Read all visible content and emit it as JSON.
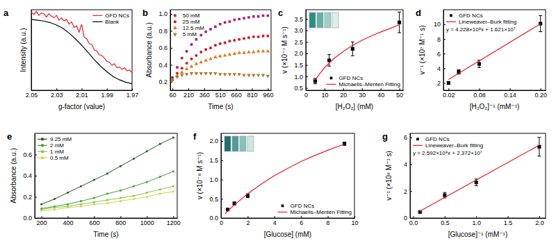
{
  "chart_data": [
    {
      "panel": "a",
      "type": "line",
      "x_label": "g-factor (value)",
      "y_label": "Intensity (a.u.)",
      "xlim": [
        2.05,
        1.97
      ],
      "xticks": [
        2.05,
        2.03,
        2.01,
        1.99,
        1.97
      ],
      "ylim": [
        0,
        1
      ],
      "tick_labels": "x",
      "legend": "top-right",
      "series": [
        {
          "name": "GFD NCs",
          "color": "#ee1c25",
          "x": [
            2.05,
            2.048,
            2.046,
            2.044,
            2.042,
            2.04,
            2.038,
            2.036,
            2.034,
            2.032,
            2.03,
            2.028,
            2.026,
            2.024,
            2.022,
            2.02,
            2.018,
            2.016,
            2.014,
            2.012,
            2.01,
            2.008,
            2.006,
            2.004,
            2.002,
            2.0,
            1.998,
            1.996,
            1.994,
            1.992,
            1.99,
            1.988,
            1.986,
            1.984,
            1.982,
            1.98,
            1.978,
            1.976,
            1.974,
            1.972,
            1.97
          ],
          "values": [
            0.97,
            0.94,
            0.98,
            0.93,
            0.96,
            0.95,
            0.91,
            0.95,
            0.92,
            0.9,
            0.93,
            0.87,
            0.9,
            0.86,
            0.88,
            0.82,
            0.85,
            0.78,
            0.8,
            0.72,
            0.82,
            0.66,
            0.64,
            0.58,
            0.57,
            0.5,
            0.49,
            0.44,
            0.43,
            0.4,
            0.36,
            0.35,
            0.31,
            0.33,
            0.28,
            0.29,
            0.26,
            0.28,
            0.24,
            0.25,
            0.22
          ]
        },
        {
          "name": "Blank",
          "color": "#000000",
          "x": [
            2.05,
            2.045,
            2.04,
            2.035,
            2.03,
            2.025,
            2.02,
            2.015,
            2.01,
            2.005,
            2.0,
            1.995,
            1.99,
            1.985,
            1.98,
            1.975,
            1.97
          ],
          "values": [
            0.88,
            0.87,
            0.86,
            0.84,
            0.81,
            0.77,
            0.71,
            0.64,
            0.56,
            0.47,
            0.38,
            0.3,
            0.23,
            0.17,
            0.13,
            0.1,
            0.08
          ]
        }
      ]
    },
    {
      "panel": "b",
      "type": "scatter",
      "x_label": "Time (s)",
      "y_label": "Absorbance (a.u.)",
      "xlim": [
        40,
        990
      ],
      "xticks": [
        60,
        210,
        360,
        510,
        660,
        810,
        960
      ],
      "ylim": [
        0.1,
        1.05
      ],
      "yticks": [
        0.2,
        0.4,
        0.6,
        0.8,
        {
          "value": 1,
          "label": "1.0"
        }
      ],
      "legend": "top-left",
      "x": [
        60,
        105,
        150,
        195,
        240,
        285,
        330,
        375,
        420,
        465,
        510,
        555,
        600,
        645,
        690,
        735,
        780,
        825,
        870,
        915,
        960
      ],
      "series": [
        {
          "name": "50 mM",
          "color": "#a3227f",
          "marker": "square",
          "values": [
            0.25,
            0.37,
            0.48,
            0.56,
            0.64,
            0.7,
            0.75,
            0.79,
            0.82,
            0.85,
            0.88,
            0.9,
            0.91,
            0.93,
            0.94,
            0.95,
            0.96,
            0.97,
            0.97,
            0.98,
            0.98
          ]
        },
        {
          "name": "25 mM",
          "color": "#d7191c",
          "marker": "circle",
          "values": [
            0.22,
            0.3,
            0.36,
            0.42,
            0.47,
            0.51,
            0.55,
            0.58,
            0.6,
            0.63,
            0.65,
            0.66,
            0.68,
            0.69,
            0.7,
            0.71,
            0.72,
            0.73,
            0.73,
            0.74,
            0.74
          ]
        },
        {
          "name": "12.5 mM",
          "color": "#e6761a",
          "marker": "triangle-up",
          "values": [
            0.22,
            0.27,
            0.31,
            0.35,
            0.38,
            0.41,
            0.43,
            0.45,
            0.47,
            0.49,
            0.5,
            0.51,
            0.52,
            0.53,
            0.54,
            0.54,
            0.55,
            0.55,
            0.56,
            0.56,
            0.56
          ]
        },
        {
          "name": "5 mM",
          "color": "#a67c1e",
          "marker": "triangle-down",
          "values": [
            0.22,
            0.26,
            0.28,
            0.29,
            0.3,
            0.3,
            0.3,
            0.3,
            0.3,
            0.3,
            0.29,
            0.29,
            0.29,
            0.29,
            0.29,
            0.28,
            0.28,
            0.28,
            0.28,
            0.28,
            0.27
          ]
        }
      ]
    },
    {
      "panel": "c",
      "type": "scatter",
      "x_label": "[H₂O₂] (mM)",
      "y_label": "v (×10⁻⁷ M s⁻¹)",
      "xlim": [
        0,
        52
      ],
      "xticks": [
        0,
        10,
        20,
        30,
        40,
        50
      ],
      "ylim": [
        0.4,
        3.9
      ],
      "yticks": [
        0.5,
        {
          "value": 1,
          "label": "1.0"
        },
        1.5,
        {
          "value": 2,
          "label": "2.0"
        },
        2.5,
        {
          "value": 3,
          "label": "3.0"
        },
        3.5
      ],
      "legend": "bottom-right",
      "series": [
        {
          "name": "GFD NCs",
          "type": "scatter",
          "color": "#000000",
          "marker": "square",
          "x": [
            5,
            12.5,
            25,
            50
          ],
          "values": [
            0.8,
            1.7,
            2.2,
            3.35
          ],
          "error": [
            0.12,
            0.25,
            0.3,
            0.45
          ]
        },
        {
          "name": "Michaelis–Menten Fitting",
          "type": "line",
          "color": "#ee1c25",
          "x": [
            5,
            7.5,
            10,
            15,
            20,
            25,
            30,
            35,
            40,
            45,
            50
          ],
          "values": [
            0.85,
            1.12,
            1.38,
            1.78,
            2.08,
            2.35,
            2.57,
            2.76,
            2.93,
            3.08,
            3.25
          ]
        }
      ]
    },
    {
      "panel": "d",
      "type": "scatter",
      "x_label": "[H₂O₂]⁻¹ (mM⁻¹)",
      "y_label": "v⁻¹ (×10⁷ M⁻¹ s)",
      "xlim": [
        0.01,
        0.21
      ],
      "xticks": [
        0.02,
        0.08,
        0.14,
        {
          "value": 0.2,
          "label": "0.20"
        }
      ],
      "ylim": [
        1,
        12
      ],
      "yticks": [
        2,
        4,
        6,
        8,
        10
      ],
      "legend": "top-left",
      "annotation": "y = 4.228×10⁸x + 1.621×10⁷",
      "series": [
        {
          "name": "GFD NCs",
          "type": "scatter",
          "color": "#000000",
          "marker": "square",
          "x": [
            0.02,
            0.04,
            0.08,
            0.2
          ],
          "values": [
            2.0,
            3.5,
            4.6,
            10.1
          ],
          "error": [
            0.2,
            0.3,
            0.5,
            1.1
          ]
        },
        {
          "name": "Lineweaver–Burk fitting",
          "type": "line",
          "color": "#ee1c25",
          "x": [
            0.02,
            0.2
          ],
          "values": [
            2.47,
            10.08
          ]
        }
      ]
    },
    {
      "panel": "e",
      "type": "line",
      "x_label": "Time (s)",
      "y_label": "Absorbance (a.u.)",
      "xlim": [
        150,
        1230
      ],
      "xticks": [
        200,
        400,
        600,
        800,
        1000,
        1200
      ],
      "ylim": [
        0,
        0.8
      ],
      "yticks": [
        {
          "value": 0,
          "label": "0.0"
        },
        0.2,
        0.4,
        0.6
      ],
      "legend": "top-left",
      "x": [
        200,
        300,
        400,
        500,
        600,
        700,
        800,
        900,
        1000,
        1100,
        1200
      ],
      "series": [
        {
          "name": "9.25 mM",
          "color": "#1e5c1e",
          "marker": "square",
          "values": [
            0.13,
            0.18,
            0.24,
            0.3,
            0.36,
            0.42,
            0.49,
            0.56,
            0.63,
            0.7,
            0.76
          ]
        },
        {
          "name": "2 mM",
          "color": "#3e9c35",
          "marker": "square",
          "values": [
            0.09,
            0.11,
            0.13,
            0.16,
            0.19,
            0.23,
            0.26,
            0.3,
            0.34,
            0.39,
            0.44
          ]
        },
        {
          "name": "1 mM",
          "color": "#8cc63f",
          "marker": "square",
          "values": [
            0.08,
            0.1,
            0.11,
            0.13,
            0.15,
            0.17,
            0.19,
            0.21,
            0.24,
            0.27,
            0.3
          ]
        },
        {
          "name": "0.5 mM",
          "color": "#d2d54a",
          "marker": "square",
          "values": [
            0.07,
            0.08,
            0.1,
            0.11,
            0.13,
            0.14,
            0.16,
            0.18,
            0.2,
            0.23,
            0.25
          ]
        }
      ]
    },
    {
      "panel": "f",
      "type": "scatter",
      "x_label": "[Glucose] (mM)",
      "y_label": "v (×10⁻⁸ M s⁻¹)",
      "xlim": [
        0,
        10
      ],
      "xticks": [
        0,
        2,
        4,
        6,
        8,
        10
      ],
      "ylim": [
        0,
        2.2
      ],
      "yticks": [
        {
          "value": 0,
          "label": "0.0"
        },
        0.5,
        {
          "value": 1,
          "label": "1.0"
        },
        1.5,
        {
          "value": 2,
          "label": "2.0"
        }
      ],
      "legend": "bottom-right",
      "series": [
        {
          "name": "GFD NCs",
          "type": "scatter",
          "color": "#000000",
          "marker": "square",
          "x": [
            0.5,
            1,
            2,
            9.25
          ],
          "values": [
            0.22,
            0.38,
            0.58,
            1.93
          ],
          "error": [
            0.03,
            0.04,
            0.05,
            0.04
          ]
        },
        {
          "name": "Michaelis–Menten Fitting",
          "type": "line",
          "color": "#ee1c25",
          "x": [
            0.3,
            0.5,
            1,
            2,
            3,
            4,
            5,
            6,
            7,
            8,
            9.25
          ],
          "values": [
            0.11,
            0.18,
            0.34,
            0.63,
            0.88,
            1.1,
            1.29,
            1.47,
            1.62,
            1.76,
            1.92
          ]
        }
      ]
    },
    {
      "panel": "g",
      "type": "scatter",
      "x_label": "[Glucose]⁻¹ (mM⁻¹)",
      "y_label": "v⁻¹ (×10⁸ M⁻¹ s)",
      "xlim": [
        -0.05,
        2.1
      ],
      "xticks": [
        {
          "value": 0,
          "label": "0.0"
        },
        0.5,
        {
          "value": 1,
          "label": "1.0"
        },
        1.5,
        {
          "value": 2,
          "label": "2.0"
        }
      ],
      "ylim": [
        0,
        6.3
      ],
      "yticks": [
        0,
        2,
        4,
        6
      ],
      "legend": "top-left",
      "annotation": "y = 2.592×10⁸x + 2.372×10⁷",
      "series": [
        {
          "name": "GFD NCs",
          "type": "scatter",
          "color": "#000000",
          "marker": "square",
          "x": [
            0.108,
            0.5,
            1,
            2
          ],
          "values": [
            0.45,
            1.7,
            2.65,
            5.3
          ],
          "error": [
            0.05,
            0.2,
            0.25,
            0.7
          ]
        },
        {
          "name": "Lineweaver–Burk fitting",
          "type": "line",
          "color": "#ee1c25",
          "x": [
            0.108,
            2
          ],
          "values": [
            0.52,
            5.42
          ]
        }
      ]
    }
  ]
}
